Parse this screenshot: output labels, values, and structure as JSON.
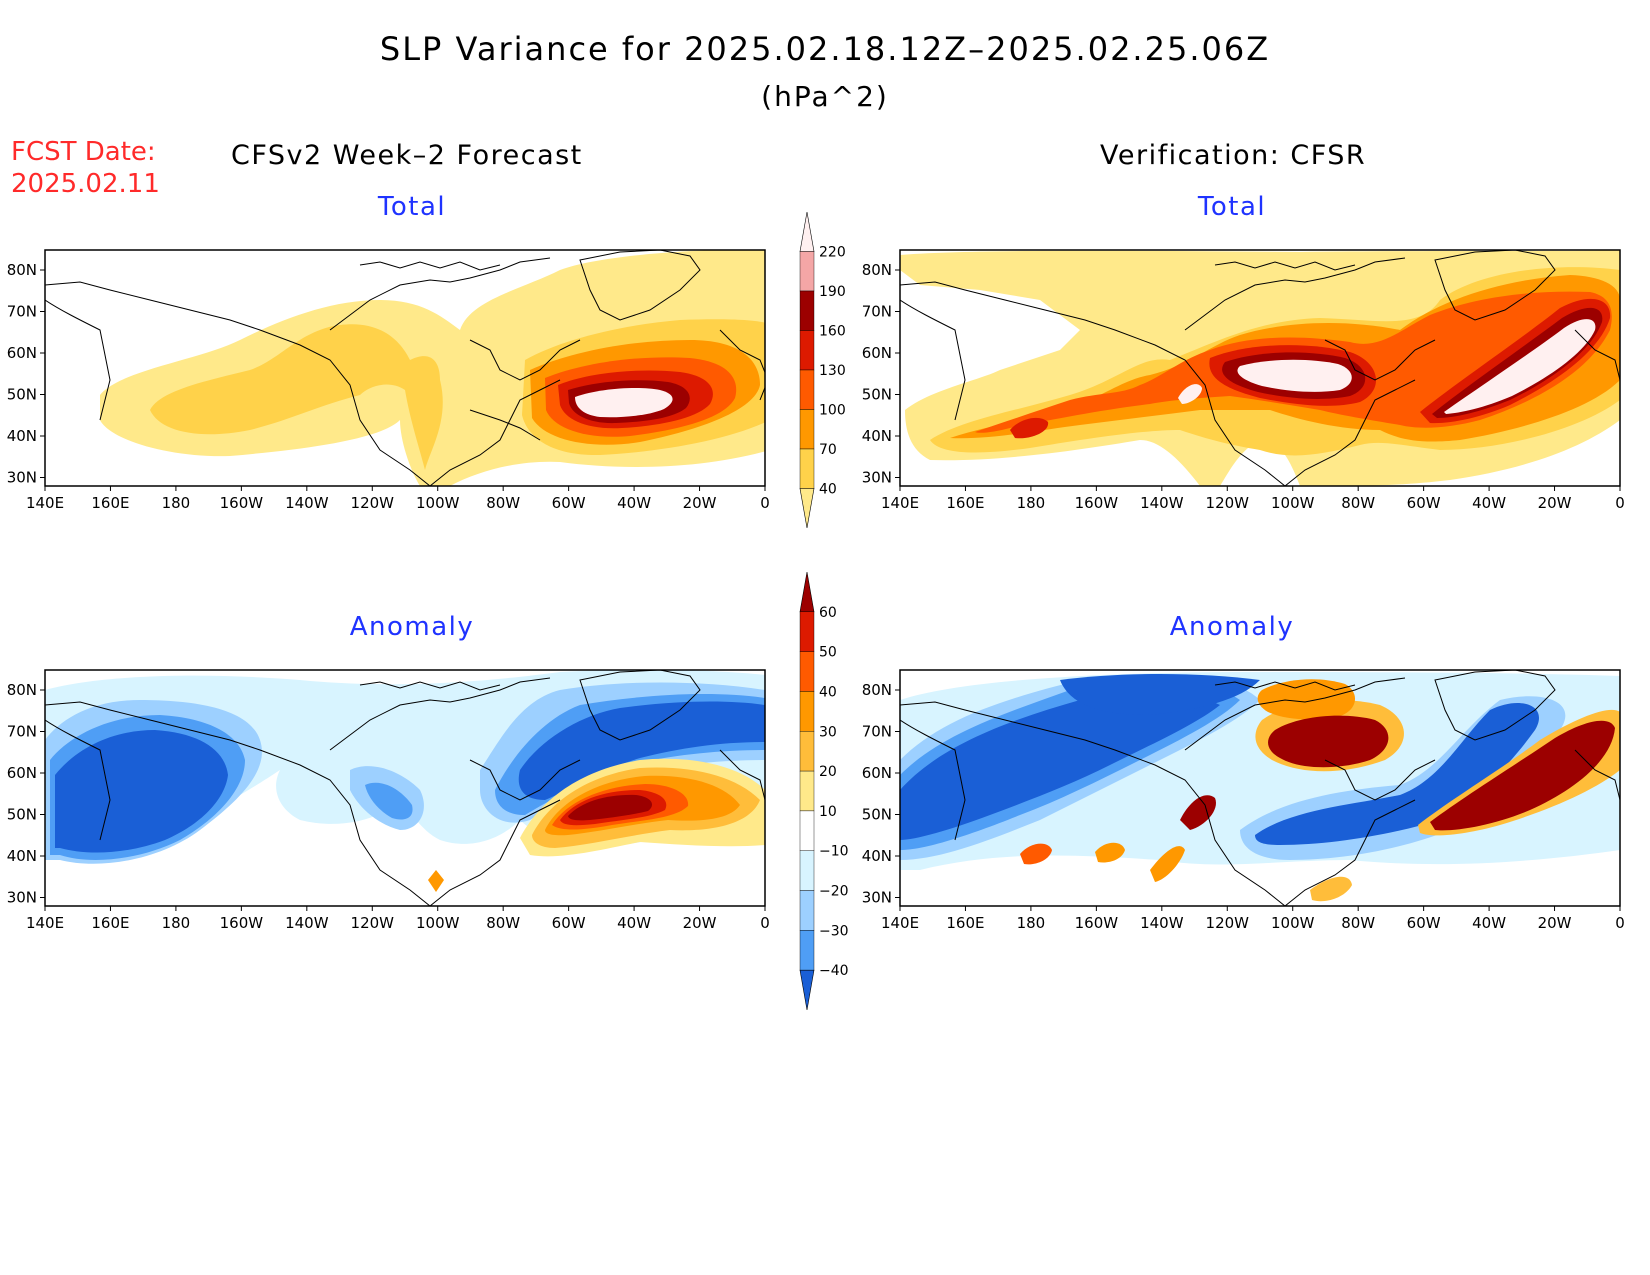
{
  "title": "SLP Variance for 2025.02.18.12Z–2025.02.25.06Z",
  "units": "(hPa^2)",
  "fcst_date": {
    "label": "FCST Date:",
    "value": "2025.02.11"
  },
  "columns": {
    "left": "CFSv2 Week–2 Forecast",
    "right": "Verification: CFSR"
  },
  "panels": [
    {
      "id": "forecast-total",
      "title": "Total"
    },
    {
      "id": "verification-total",
      "title": "Total"
    },
    {
      "id": "forecast-anomaly",
      "title": "Anomaly"
    },
    {
      "id": "verification-anomaly",
      "title": "Anomaly"
    }
  ],
  "axes": {
    "lon_labels": [
      "140E",
      "160E",
      "180",
      "160W",
      "140W",
      "120W",
      "100W",
      "80W",
      "60W",
      "40W",
      "20W",
      "0"
    ],
    "lat_labels": [
      "80N",
      "70N",
      "60N",
      "50N",
      "40N",
      "30N"
    ]
  },
  "colorbars": {
    "total": {
      "levels": [
        "220",
        "190",
        "160",
        "130",
        "100",
        "70",
        "40"
      ],
      "colors": [
        "#fff0f0",
        "#f4a6a6",
        "#9c0000",
        "#dd1a00",
        "#ff5a00",
        "#ff9800",
        "#ffd24a",
        "#ffe98a"
      ]
    },
    "anomaly": {
      "levels": [
        "60",
        "50",
        "40",
        "30",
        "20",
        "10",
        "−10",
        "−20",
        "−30",
        "−40"
      ],
      "colors": [
        "#9c0000",
        "#dd1a00",
        "#ff5a00",
        "#ff9800",
        "#ffbd3a",
        "#ffe98a",
        "#ffffff",
        "#d8f4ff",
        "#9dd0ff",
        "#4f9ef5",
        "#1a5fd6"
      ]
    }
  }
}
